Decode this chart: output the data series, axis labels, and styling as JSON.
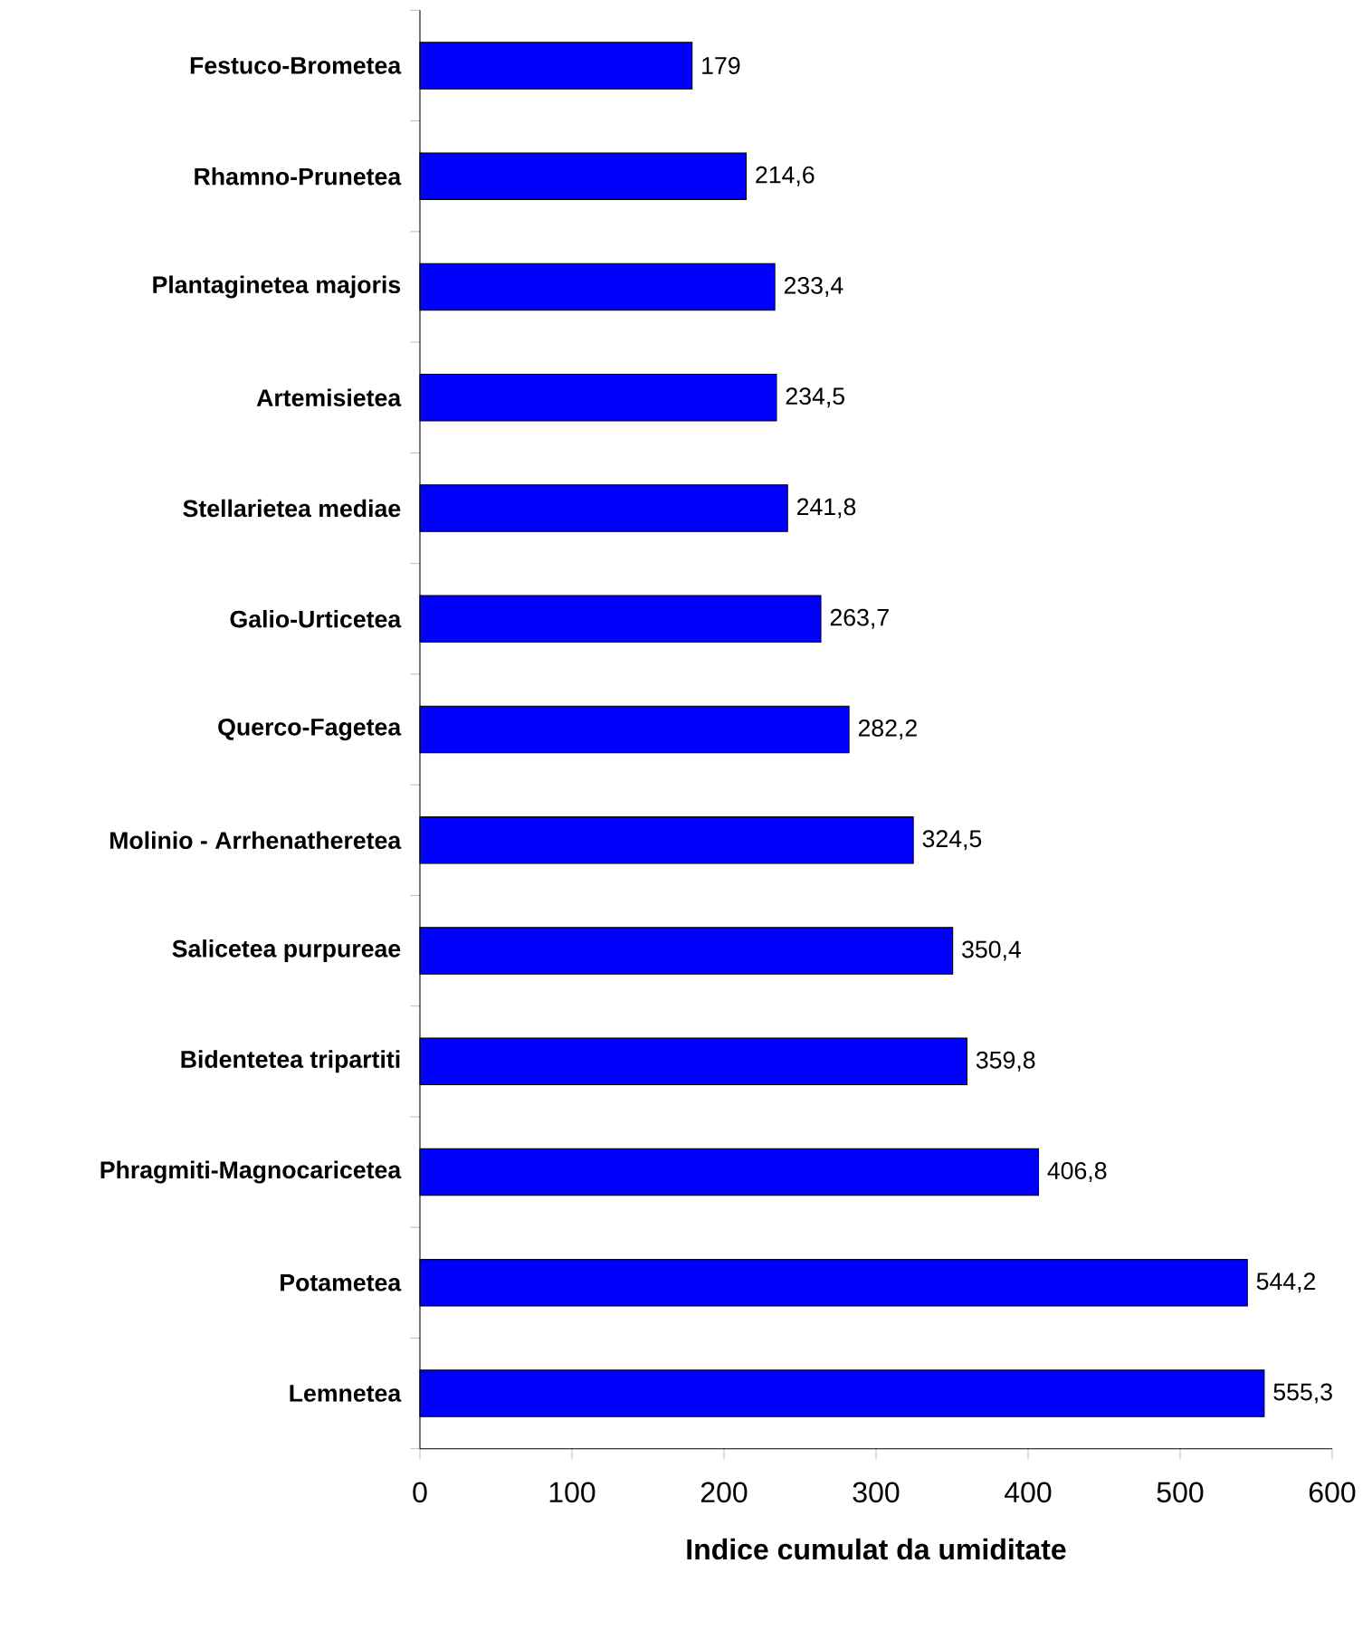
{
  "chart_data": {
    "type": "bar",
    "orientation": "horizontal",
    "xlabel": "Indice cumulat da umiditate",
    "categories": [
      "Festuco-Brometea",
      "Rhamno-Prunetea",
      "Plantaginetea majoris",
      "Artemisietea",
      "Stellarietea mediae",
      "Galio-Urticetea",
      "Querco-Fagetea",
      "Molinio - Arrhenatheretea",
      "Salicetea purpureae",
      "Bidentetea tripartiti",
      "Phragmiti-Magnocaricetea",
      "Potametea",
      "Lemnetea"
    ],
    "values": [
      179,
      214.6,
      233.4,
      234.5,
      241.8,
      263.7,
      282.2,
      324.5,
      350.4,
      359.8,
      406.8,
      544.2,
      555.3
    ],
    "value_labels": [
      "179",
      "214,6",
      "233,4",
      "234,5",
      "241,8",
      "263,7",
      "282,2",
      "324,5",
      "350,4",
      "359,8",
      "406,8",
      "544,2",
      "555,3"
    ],
    "color": "#0000ff",
    "xlim": [
      0,
      600
    ],
    "xticks": [
      0,
      100,
      200,
      300,
      400,
      500,
      600
    ]
  }
}
